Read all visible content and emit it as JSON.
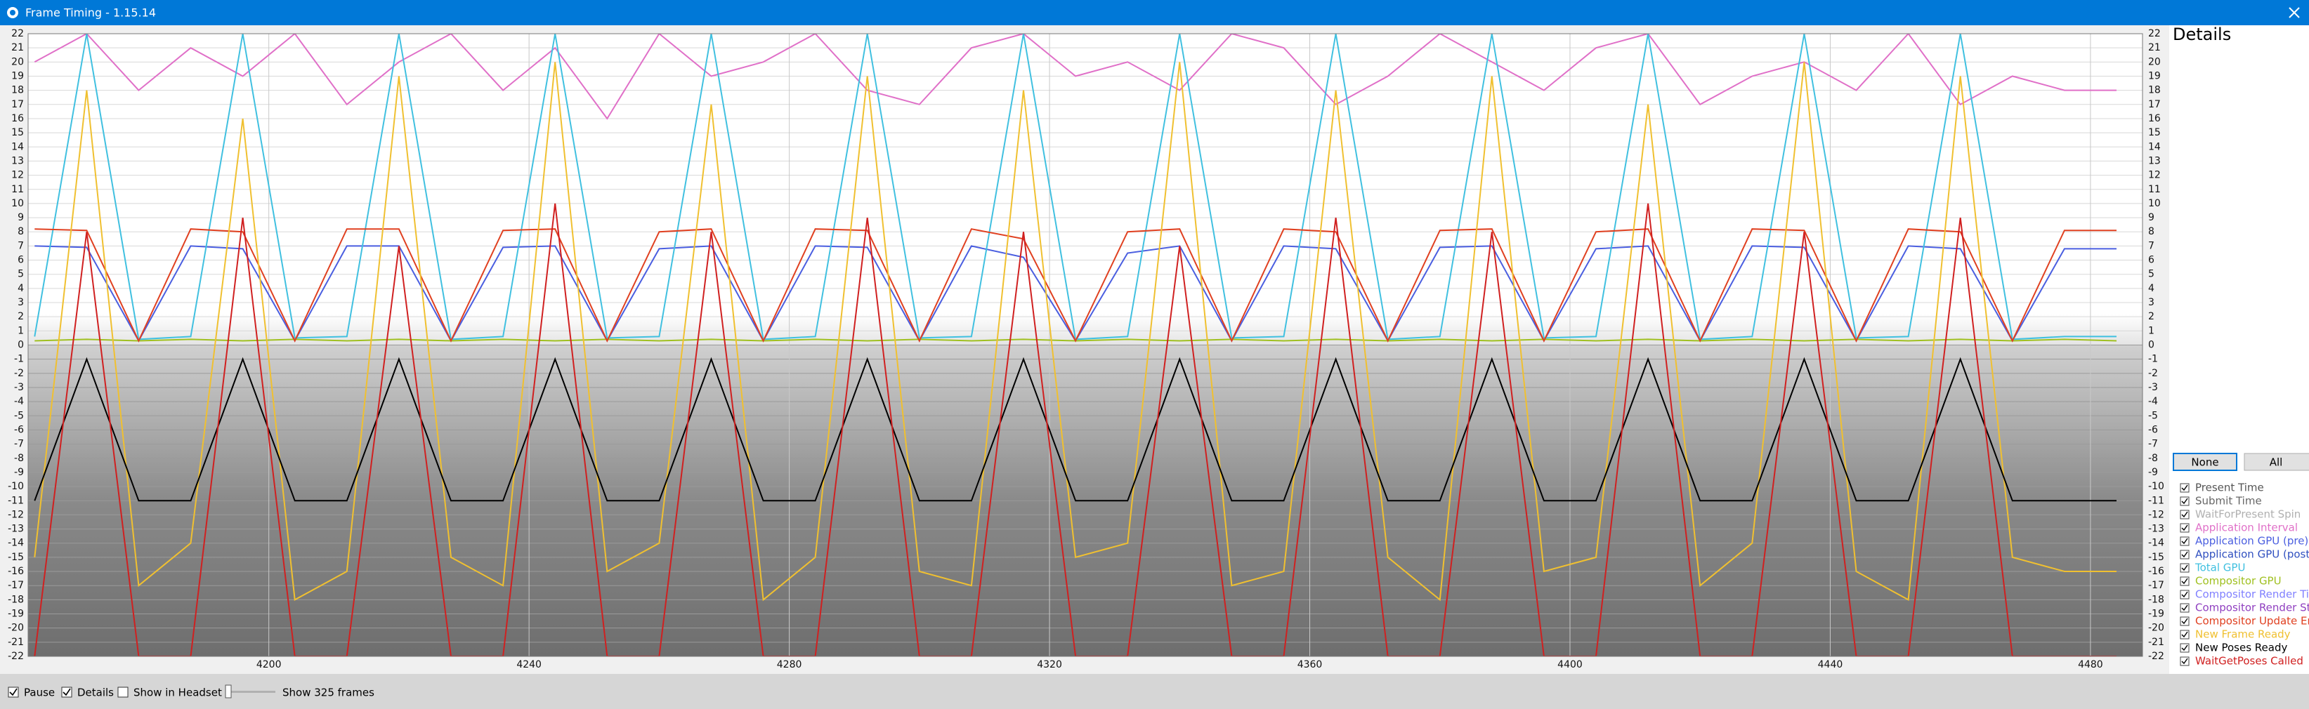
{
  "ui": {
    "title": "Frame Timing - 1.15.14",
    "details": {
      "title": "Details",
      "none_button": "None",
      "all_button": "All"
    },
    "bottom": {
      "pause": "Pause",
      "details": "Details",
      "show_in_headset": "Show in Headset",
      "frames": "Show 325 frames"
    }
  },
  "chart_data": {
    "type": "line",
    "x": [
      4164,
      4172,
      4180,
      4188,
      4196,
      4204,
      4212,
      4220,
      4228,
      4236,
      4244,
      4252,
      4260,
      4268,
      4276,
      4284,
      4292,
      4300,
      4308,
      4316,
      4324,
      4332,
      4340,
      4348,
      4356,
      4364,
      4372,
      4380,
      4388,
      4396,
      4404,
      4412,
      4420,
      4428,
      4436,
      4444,
      4452,
      4460,
      4468,
      4476,
      4484
    ],
    "xlim": [
      4163,
      4488
    ],
    "xticks": [
      4200,
      4240,
      4280,
      4320,
      4360,
      4400,
      4440,
      4480
    ],
    "ylim": [
      -22,
      22
    ],
    "yticks": [
      -22,
      -21,
      -20,
      -19,
      -18,
      -17,
      -16,
      -15,
      -14,
      -13,
      -12,
      -11,
      -10,
      -9,
      -8,
      -7,
      -6,
      -5,
      -4,
      -3,
      -2,
      -1,
      0,
      1,
      2,
      3,
      4,
      5,
      6,
      7,
      8,
      9,
      10,
      11,
      12,
      13,
      14,
      15,
      16,
      17,
      18,
      19,
      20,
      21,
      22
    ],
    "grid": true,
    "series": [
      {
        "name": "Present Time",
        "color": "#555555"
      },
      {
        "name": "Submit Time",
        "color": "#666666"
      },
      {
        "name": "WaitForPresent Spin",
        "color": "#b0b0b0"
      },
      {
        "name": "Application Interval",
        "color": "#e070c8",
        "values": [
          20,
          22,
          18,
          21,
          19,
          22,
          17,
          20,
          22,
          18,
          21,
          16,
          22,
          19,
          20,
          22,
          18,
          17,
          21,
          22,
          19,
          20,
          18,
          22,
          21,
          17,
          19,
          22,
          20,
          18,
          21,
          22,
          17,
          19,
          20,
          18,
          22,
          17,
          19,
          18,
          18
        ]
      },
      {
        "name": "Application GPU (pre)",
        "color": "#4a5ee0",
        "values": [
          7,
          6.9,
          0.3,
          7,
          6.8,
          0.3,
          7,
          7,
          0.3,
          6.9,
          7,
          0.3,
          6.8,
          7,
          0.3,
          7,
          6.9,
          0.3,
          7,
          6.2,
          0.3,
          6.5,
          7,
          0.3,
          7,
          6.8,
          0.3,
          6.9,
          7,
          0.3,
          6.8,
          7,
          0.3,
          7,
          6.9,
          0.3,
          7,
          6.8,
          0.3,
          6.8,
          6.8
        ]
      },
      {
        "name": "Application GPU (post)",
        "color": "#3050c0"
      },
      {
        "name": "Total GPU",
        "color": "#40c0e0",
        "values": [
          0.6,
          22,
          0.4,
          0.6,
          22,
          0.5,
          0.6,
          22,
          0.4,
          0.6,
          22,
          0.5,
          0.6,
          22,
          0.4,
          0.6,
          22,
          0.5,
          0.6,
          22,
          0.4,
          0.6,
          22,
          0.5,
          0.6,
          22,
          0.4,
          0.6,
          22,
          0.5,
          0.6,
          22,
          0.4,
          0.6,
          22,
          0.5,
          0.6,
          22,
          0.4,
          0.6,
          0.6
        ]
      },
      {
        "name": "Compositor GPU",
        "color": "#a0c020",
        "values": [
          0.3,
          0.4,
          0.3,
          0.4,
          0.3,
          0.4,
          0.3,
          0.4,
          0.3,
          0.4,
          0.3,
          0.4,
          0.3,
          0.4,
          0.3,
          0.4,
          0.3,
          0.4,
          0.3,
          0.4,
          0.3,
          0.4,
          0.3,
          0.4,
          0.3,
          0.4,
          0.3,
          0.4,
          0.3,
          0.4,
          0.3,
          0.4,
          0.3,
          0.4,
          0.3,
          0.4,
          0.3,
          0.4,
          0.3,
          0.4,
          0.3
        ]
      },
      {
        "name": "Compositor Render Ti",
        "color": "#8080ff"
      },
      {
        "name": "Compositor Render St",
        "color": "#9040c0"
      },
      {
        "name": "Compositor Update En",
        "color": "#e04020",
        "values": [
          8.2,
          8.1,
          0.3,
          8.2,
          8,
          0.3,
          8.2,
          8.2,
          0.3,
          8.1,
          8.2,
          0.3,
          8,
          8.2,
          0.3,
          8.2,
          8.1,
          0.3,
          8.2,
          7.5,
          0.3,
          8,
          8.2,
          0.3,
          8.2,
          8,
          0.3,
          8.1,
          8.2,
          0.3,
          8,
          8.2,
          0.3,
          8.2,
          8.1,
          0.3,
          8.2,
          8,
          0.3,
          8.1,
          8.1
        ]
      },
      {
        "name": "New Frame Ready",
        "color": "#f0c030",
        "values": [
          -15,
          18,
          -17,
          -14,
          16,
          -18,
          -16,
          19,
          -15,
          -17,
          20,
          -16,
          -14,
          17,
          -18,
          -15,
          19,
          -16,
          -17,
          18,
          -15,
          -14,
          20,
          -17,
          -16,
          18,
          -15,
          -18,
          19,
          -16,
          -15,
          17,
          -17,
          -14,
          20,
          -16,
          -18,
          19,
          -15,
          -16,
          -16
        ]
      },
      {
        "name": "New Poses Ready",
        "color": "#000000",
        "values": [
          -11,
          -1,
          -11,
          -11,
          -1,
          -11,
          -11,
          -1,
          -11,
          -11,
          -1,
          -11,
          -11,
          -1,
          -11,
          -11,
          -1,
          -11,
          -11,
          -1,
          -11,
          -11,
          -1,
          -11,
          -11,
          -1,
          -11,
          -11,
          -1,
          -11,
          -11,
          -1,
          -11,
          -11,
          -1,
          -11,
          -11,
          -1,
          -11,
          -11,
          -11
        ]
      },
      {
        "name": "WaitGetPoses Called",
        "color": "#d02020",
        "values": [
          -22,
          8,
          -22,
          -22,
          9,
          -22,
          -22,
          7,
          -22,
          -22,
          10,
          -22,
          -22,
          8,
          -22,
          -22,
          9,
          -22,
          -22,
          8,
          -22,
          -22,
          7,
          -22,
          -22,
          9,
          -22,
          -22,
          8,
          -22,
          -22,
          10,
          -22,
          -22,
          8,
          -22,
          -22,
          9,
          -22,
          -22,
          -22
        ]
      }
    ]
  }
}
